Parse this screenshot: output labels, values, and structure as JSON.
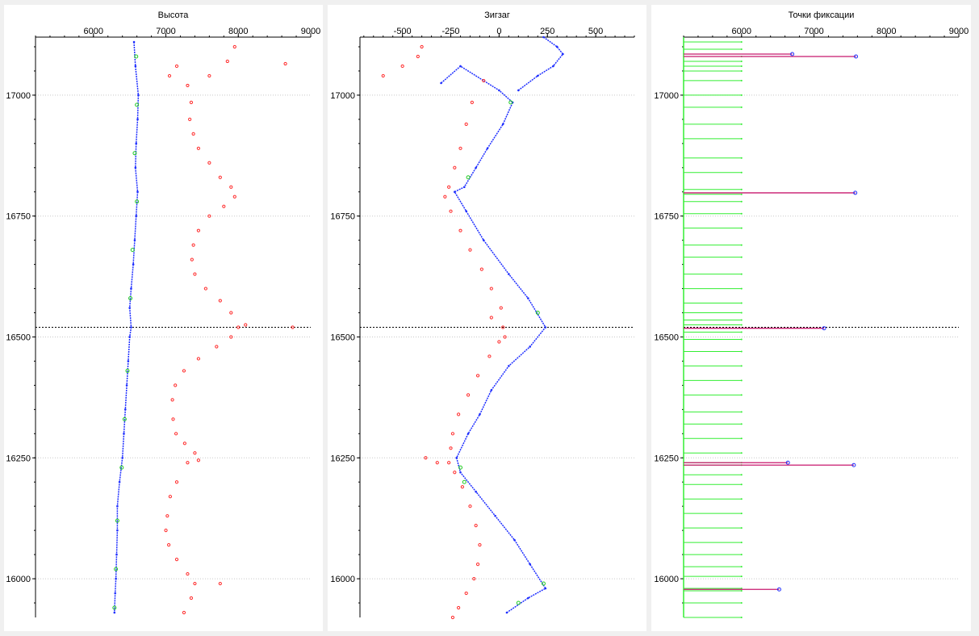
{
  "colors": {
    "blue": "#1f2fff",
    "green": "#22cc22",
    "red": "#ff2a2a",
    "magenta": "#c8186e",
    "bright_green": "#33ee33",
    "grid": "#c8c8c8",
    "panel": "#ffffff",
    "background": "#f0f0f0"
  },
  "cursor_depth": 16520,
  "chart_data": [
    {
      "type": "scatter",
      "title": "Высота",
      "xlabel": "",
      "ylabel": "",
      "xlim": [
        5200,
        9000
      ],
      "ylim": [
        15920,
        17120
      ],
      "y_inverted": false,
      "grid": true,
      "x_ticks": [
        6000,
        7000,
        8000,
        9000
      ],
      "y_ticks": [
        16000,
        16250,
        16500,
        16750,
        17000
      ],
      "series": [
        {
          "color": "blue",
          "style": "line",
          "points": [
            [
              6560,
              17110
            ],
            [
              6580,
              17060
            ],
            [
              6620,
              17000
            ],
            [
              6610,
              16950
            ],
            [
              6590,
              16900
            ],
            [
              6580,
              16850
            ],
            [
              6610,
              16800
            ],
            [
              6590,
              16750
            ],
            [
              6570,
              16700
            ],
            [
              6550,
              16650
            ],
            [
              6520,
              16600
            ],
            [
              6500,
              16560
            ],
            [
              6520,
              16520
            ],
            [
              6500,
              16500
            ],
            [
              6480,
              16450
            ],
            [
              6460,
              16400
            ],
            [
              6440,
              16350
            ],
            [
              6420,
              16300
            ],
            [
              6400,
              16250
            ],
            [
              6360,
              16200
            ],
            [
              6330,
              16150
            ],
            [
              6330,
              16100
            ],
            [
              6320,
              16050
            ],
            [
              6310,
              16000
            ],
            [
              6300,
              15970
            ],
            [
              6290,
              15930
            ]
          ]
        },
        {
          "color": "red",
          "style": "dots",
          "points": [
            [
              7350,
              16985
            ],
            [
              7330,
              16950
            ],
            [
              7380,
              16920
            ],
            [
              7450,
              16890
            ],
            [
              7600,
              16860
            ],
            [
              7750,
              16830
            ],
            [
              7900,
              16810
            ],
            [
              7950,
              16790
            ],
            [
              7800,
              16770
            ],
            [
              7600,
              16750
            ],
            [
              7450,
              16720
            ],
            [
              7380,
              16690
            ],
            [
              7360,
              16660
            ],
            [
              7400,
              16630
            ],
            [
              7550,
              16600
            ],
            [
              7750,
              16575
            ],
            [
              7900,
              16550
            ],
            [
              8000,
              16520
            ],
            [
              7900,
              16500
            ],
            [
              7700,
              16480
            ],
            [
              7450,
              16455
            ],
            [
              7250,
              16430
            ],
            [
              7130,
              16400
            ],
            [
              7090,
              16370
            ],
            [
              7100,
              16330
            ],
            [
              7140,
              16300
            ],
            [
              7260,
              16280
            ],
            [
              7400,
              16260
            ],
            [
              7300,
              16240
            ],
            [
              7150,
              16200
            ],
            [
              7060,
              16170
            ],
            [
              7020,
              16130
            ],
            [
              7000,
              16100
            ],
            [
              7040,
              16070
            ],
            [
              7150,
              16040
            ],
            [
              7300,
              16010
            ],
            [
              7400,
              15990
            ],
            [
              7350,
              15960
            ],
            [
              7250,
              15930
            ],
            [
              7150,
              17060
            ],
            [
              7050,
              17040
            ],
            [
              7300,
              17020
            ],
            [
              7600,
              17040
            ],
            [
              7850,
              17070
            ],
            [
              7950,
              17100
            ],
            [
              8650,
              17065
            ],
            [
              8750,
              16520
            ],
            [
              8100,
              16525
            ],
            [
              7450,
              16245
            ],
            [
              7750,
              15990
            ]
          ]
        },
        {
          "color": "green",
          "style": "dots",
          "points": [
            [
              6590,
              17080
            ],
            [
              6600,
              16980
            ],
            [
              6570,
              16880
            ],
            [
              6600,
              16780
            ],
            [
              6540,
              16680
            ],
            [
              6510,
              16580
            ],
            [
              6470,
              16430
            ],
            [
              6430,
              16330
            ],
            [
              6390,
              16230
            ],
            [
              6330,
              16120
            ],
            [
              6310,
              16020
            ],
            [
              6290,
              15940
            ]
          ]
        }
      ]
    },
    {
      "type": "scatter",
      "title": "Зигзаг",
      "xlabel": "",
      "ylabel": "",
      "xlim": [
        -720,
        700
      ],
      "ylim": [
        15920,
        17120
      ],
      "grid": true,
      "x_ticks": [
        -500,
        -250,
        0,
        250,
        500
      ],
      "y_ticks": [
        16000,
        16250,
        16500,
        16750,
        17000
      ],
      "series": [
        {
          "color": "blue",
          "style": "line",
          "points": [
            [
              -300,
              17025
            ],
            [
              -200,
              17060
            ],
            [
              0,
              17010
            ],
            [
              70,
              16985
            ],
            [
              20,
              16940
            ],
            [
              -60,
              16890
            ],
            [
              -120,
              16850
            ],
            [
              -180,
              16810
            ],
            [
              -230,
              16800
            ],
            [
              -170,
              16760
            ],
            [
              -80,
              16700
            ],
            [
              50,
              16630
            ],
            [
              150,
              16580
            ],
            [
              240,
              16520
            ],
            [
              160,
              16480
            ],
            [
              50,
              16440
            ],
            [
              -40,
              16390
            ],
            [
              -100,
              16340
            ],
            [
              -160,
              16300
            ],
            [
              -220,
              16250
            ],
            [
              -200,
              16220
            ],
            [
              -120,
              16180
            ],
            [
              -20,
              16130
            ],
            [
              80,
              16080
            ],
            [
              160,
              16030
            ],
            [
              240,
              15980
            ],
            [
              150,
              15960
            ],
            [
              40,
              15930
            ]
          ]
        },
        {
          "color": "blue",
          "style": "line",
          "points": [
            [
              230,
              17120
            ],
            [
              300,
              17100
            ],
            [
              330,
              17085
            ],
            [
              280,
              17060
            ],
            [
              200,
              17040
            ],
            [
              100,
              17010
            ]
          ]
        },
        {
          "color": "red",
          "style": "dots",
          "points": [
            [
              -140,
              16985
            ],
            [
              -170,
              16940
            ],
            [
              -200,
              16890
            ],
            [
              -230,
              16850
            ],
            [
              -260,
              16810
            ],
            [
              -280,
              16790
            ],
            [
              -250,
              16760
            ],
            [
              -200,
              16720
            ],
            [
              -150,
              16680
            ],
            [
              -90,
              16640
            ],
            [
              -40,
              16600
            ],
            [
              10,
              16560
            ],
            [
              20,
              16520
            ],
            [
              0,
              16490
            ],
            [
              -50,
              16460
            ],
            [
              -110,
              16420
            ],
            [
              -160,
              16380
            ],
            [
              -210,
              16340
            ],
            [
              -240,
              16300
            ],
            [
              -250,
              16270
            ],
            [
              -260,
              16240
            ],
            [
              -230,
              16220
            ],
            [
              -190,
              16190
            ],
            [
              -150,
              16150
            ],
            [
              -120,
              16110
            ],
            [
              -100,
              16070
            ],
            [
              -110,
              16030
            ],
            [
              -130,
              16000
            ],
            [
              -170,
              15970
            ],
            [
              -210,
              15940
            ],
            [
              -240,
              15920
            ],
            [
              -500,
              17060
            ],
            [
              -420,
              17080
            ],
            [
              -600,
              17040
            ],
            [
              -400,
              17100
            ],
            [
              -80,
              17030
            ],
            [
              -380,
              16250
            ],
            [
              -320,
              16240
            ],
            [
              30,
              16500
            ],
            [
              -40,
              16540
            ]
          ]
        },
        {
          "color": "green",
          "style": "dots",
          "points": [
            [
              60,
              16985
            ],
            [
              -160,
              16830
            ],
            [
              200,
              16550
            ],
            [
              -200,
              16230
            ],
            [
              -180,
              16200
            ],
            [
              230,
              15990
            ],
            [
              100,
              15950
            ]
          ]
        }
      ]
    },
    {
      "type": "bar",
      "title": "Точки фиксации",
      "xlabel": "",
      "ylabel": "",
      "xlim": [
        5200,
        9000
      ],
      "ylim": [
        15920,
        17120
      ],
      "grid": true,
      "x_ticks": [
        6000,
        7000,
        8000,
        9000
      ],
      "y_ticks": [
        16000,
        16250,
        16500,
        16750,
        17000
      ],
      "base": 5200,
      "green_bars": {
        "value": 6000,
        "depths": [
          17110,
          17095,
          17080,
          17070,
          17060,
          17050,
          17030,
          17000,
          16975,
          16940,
          16910,
          16870,
          16840,
          16805,
          16795,
          16780,
          16755,
          16725,
          16690,
          16665,
          16630,
          16600,
          16570,
          16550,
          16535,
          16525,
          16510,
          16495,
          16470,
          16440,
          16410,
          16380,
          16345,
          16320,
          16290,
          16260,
          16240,
          16235,
          16215,
          16195,
          16165,
          16135,
          16105,
          16075,
          16050,
          16025,
          16005,
          15980,
          15975,
          15950,
          15920
        ]
      },
      "magenta_bars": [
        {
          "depth": 17085,
          "value": 6700
        },
        {
          "depth": 17080,
          "value": 7580
        },
        {
          "depth": 16798,
          "value": 7570
        },
        {
          "depth": 16518,
          "value": 7140
        },
        {
          "depth": 16240,
          "value": 6640
        },
        {
          "depth": 16235,
          "value": 7550
        },
        {
          "depth": 15978,
          "value": 6520
        }
      ]
    }
  ]
}
